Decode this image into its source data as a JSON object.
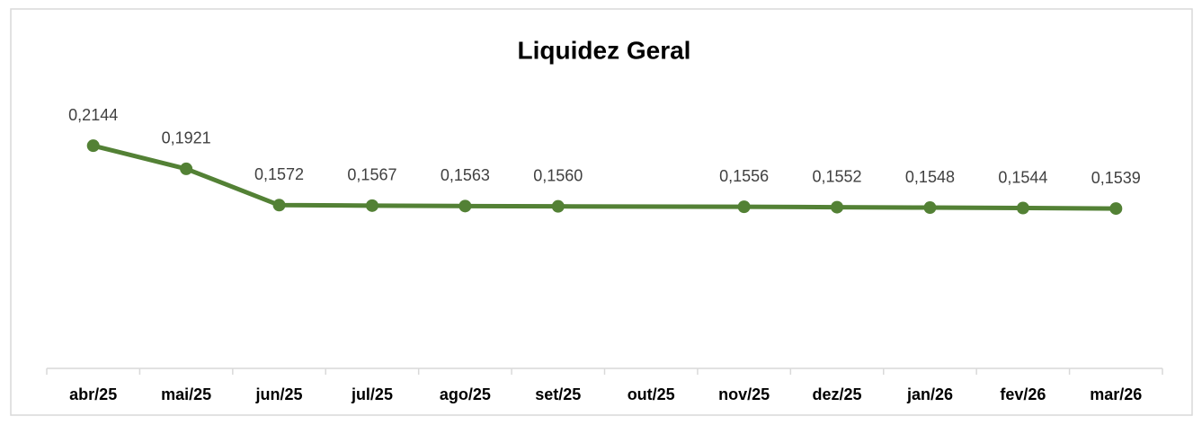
{
  "chart_data": {
    "type": "line",
    "title": "Liquidez Geral",
    "categories": [
      "abr/25",
      "mai/25",
      "jun/25",
      "jul/25",
      "ago/25",
      "set/25",
      "out/25",
      "nov/25",
      "dez/25",
      "jan/26",
      "fev/26",
      "mar/26"
    ],
    "series": [
      {
        "name": "Liquidez Geral",
        "color": "#538135",
        "values": [
          0.2144,
          0.1921,
          0.1572,
          0.1567,
          0.1563,
          0.156,
          null,
          0.1556,
          0.1552,
          0.1548,
          0.1544,
          0.1539
        ],
        "value_labels": [
          "0,2144",
          "0,1921",
          "0,1572",
          "0,1567",
          "0,1563",
          "0,1560",
          null,
          "0,1556",
          "0,1552",
          "0,1548",
          "0,1544",
          "0,1539"
        ]
      }
    ],
    "ylim": [
      0,
      0.25
    ],
    "connect_gaps": true
  }
}
